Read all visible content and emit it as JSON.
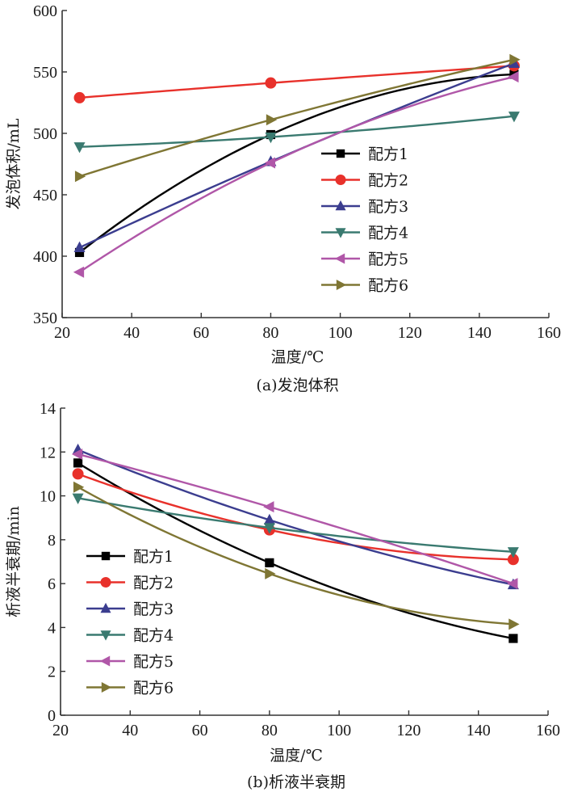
{
  "chart_data": [
    {
      "id": "a",
      "type": "line",
      "title": "",
      "caption": "(a)发泡体积",
      "xlabel": "温度/℃",
      "ylabel": "发泡体积/mL",
      "xlim": [
        20,
        160
      ],
      "ylim": [
        350,
        600
      ],
      "xticks": [
        20,
        40,
        60,
        80,
        100,
        120,
        140,
        160
      ],
      "yticks": [
        350,
        400,
        450,
        500,
        550,
        600
      ],
      "grid": false,
      "legend_position": "center-right",
      "x": [
        25,
        80,
        150
      ],
      "series": [
        {
          "name": "配方1",
          "color": "#000000",
          "marker": "square",
          "smooth": true,
          "values": [
            403,
            499,
            548
          ]
        },
        {
          "name": "配方2",
          "color": "#e8312b",
          "marker": "circle",
          "smooth": true,
          "values": [
            529,
            541,
            555
          ]
        },
        {
          "name": "配方3",
          "color": "#3b3d8f",
          "marker": "triangle-up",
          "smooth": true,
          "values": [
            407,
            477,
            557
          ]
        },
        {
          "name": "配方4",
          "color": "#3a7a70",
          "marker": "triangle-down",
          "smooth": true,
          "values": [
            489,
            497,
            514
          ]
        },
        {
          "name": "配方5",
          "color": "#b057a8",
          "marker": "triangle-left",
          "smooth": true,
          "values": [
            387,
            476,
            546
          ]
        },
        {
          "name": "配方6",
          "color": "#7f7634",
          "marker": "triangle-right",
          "smooth": true,
          "values": [
            465,
            511,
            560
          ]
        }
      ]
    },
    {
      "id": "b",
      "type": "line",
      "title": "",
      "caption": "(b)析液半衰期",
      "xlabel": "温度/℃",
      "ylabel": "析液半衰期/min",
      "xlim": [
        20,
        160
      ],
      "ylim": [
        0,
        14
      ],
      "xticks": [
        20,
        40,
        60,
        80,
        100,
        120,
        140,
        160
      ],
      "yticks": [
        0,
        2,
        4,
        6,
        8,
        10,
        12,
        14
      ],
      "grid": false,
      "legend_position": "bottom-left",
      "x": [
        25,
        80,
        150
      ],
      "series": [
        {
          "name": "配方1",
          "color": "#000000",
          "marker": "square",
          "smooth": true,
          "values": [
            11.5,
            6.95,
            3.5
          ]
        },
        {
          "name": "配方2",
          "color": "#e8312b",
          "marker": "circle",
          "smooth": true,
          "values": [
            11.0,
            8.45,
            7.1
          ]
        },
        {
          "name": "配方3",
          "color": "#3b3d8f",
          "marker": "triangle-up",
          "smooth": true,
          "values": [
            12.1,
            8.9,
            5.95
          ]
        },
        {
          "name": "配方4",
          "color": "#3a7a70",
          "marker": "triangle-down",
          "smooth": true,
          "values": [
            9.9,
            8.55,
            7.45
          ]
        },
        {
          "name": "配方5",
          "color": "#b057a8",
          "marker": "triangle-left",
          "smooth": true,
          "values": [
            11.9,
            9.5,
            6.0
          ]
        },
        {
          "name": "配方6",
          "color": "#7f7634",
          "marker": "triangle-right",
          "smooth": true,
          "values": [
            10.4,
            6.45,
            4.15
          ]
        }
      ]
    }
  ]
}
